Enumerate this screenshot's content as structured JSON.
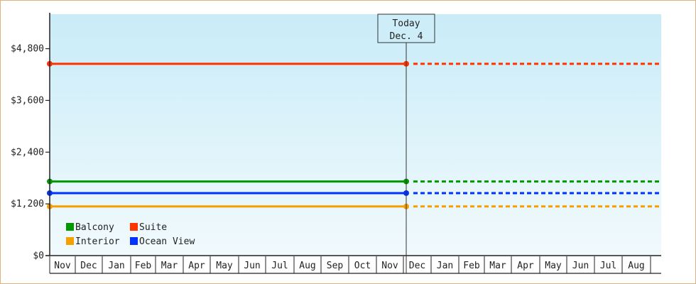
{
  "chart_data": {
    "type": "line",
    "ylim": [
      0,
      5600
    ],
    "y_ticks": [
      {
        "value": 0,
        "label": "$0"
      },
      {
        "value": 1200,
        "label": "$1,200"
      },
      {
        "value": 2400,
        "label": "$2,400"
      },
      {
        "value": 3600,
        "label": "$3,600"
      },
      {
        "value": 4800,
        "label": "$4,800"
      }
    ],
    "x_labels": [
      "Nov",
      "Dec",
      "Jan",
      "Feb",
      "Mar",
      "Apr",
      "May",
      "Jun",
      "Jul",
      "Aug",
      "Sep",
      "Oct",
      "Nov",
      "Dec",
      "Jan",
      "Feb",
      "Mar",
      "Apr",
      "May",
      "Jun",
      "Jul",
      "Aug"
    ],
    "today_marker": {
      "line1": "Today",
      "line2": "Dec. 4"
    },
    "series": [
      {
        "name": "Suite",
        "color": "#ff3300",
        "value": 4450
      },
      {
        "name": "Balcony",
        "color": "#009900",
        "value": 1720
      },
      {
        "name": "Ocean View",
        "color": "#0033ff",
        "value": 1450
      },
      {
        "name": "Interior",
        "color": "#f5a000",
        "value": 1140
      }
    ],
    "legend": {
      "placement": "bottom-left",
      "rows": [
        [
          "Balcony",
          "Suite"
        ],
        [
          "Interior",
          "Ocean View"
        ]
      ]
    },
    "grid": false,
    "projection": "dashed after today"
  }
}
